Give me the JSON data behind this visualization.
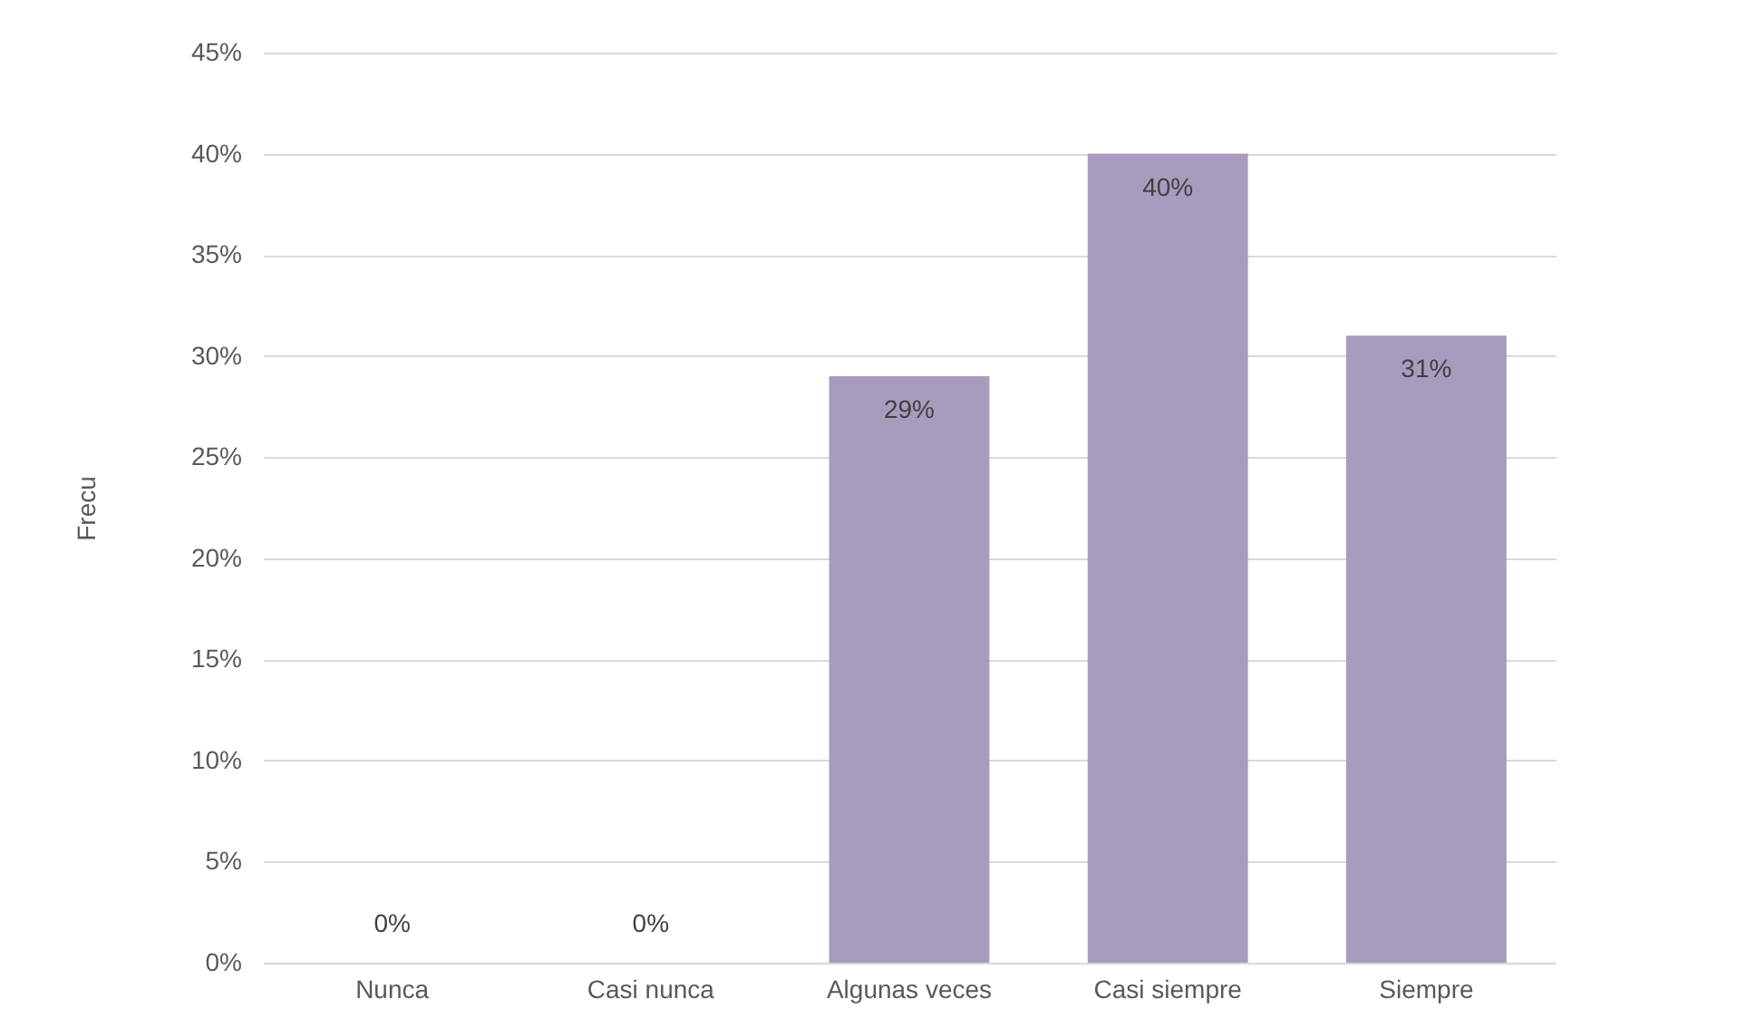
{
  "chart_data": {
    "type": "bar",
    "ylabel": "Frecu",
    "categories": [
      "Nunca",
      "Casi nunca",
      "Algunas veces",
      "Casi siempre",
      "Siempre"
    ],
    "values": [
      0,
      0,
      29,
      40,
      31
    ],
    "color": "#a79bbe",
    "value_labels": [
      "0%",
      "0%",
      "29%",
      "40%",
      "31%"
    ],
    "ylim": [
      0,
      45
    ],
    "yticks": [
      {
        "value": 0,
        "label": "0%"
      },
      {
        "value": 5,
        "label": "5%"
      },
      {
        "value": 10,
        "label": "10%"
      },
      {
        "value": 15,
        "label": "15%"
      },
      {
        "value": 20,
        "label": "20%"
      },
      {
        "value": 25,
        "label": "25%"
      },
      {
        "value": 30,
        "label": "30%"
      },
      {
        "value": 35,
        "label": "35%"
      },
      {
        "value": 40,
        "label": "40%"
      },
      {
        "value": 45,
        "label": "45%"
      }
    ],
    "grid": true
  }
}
